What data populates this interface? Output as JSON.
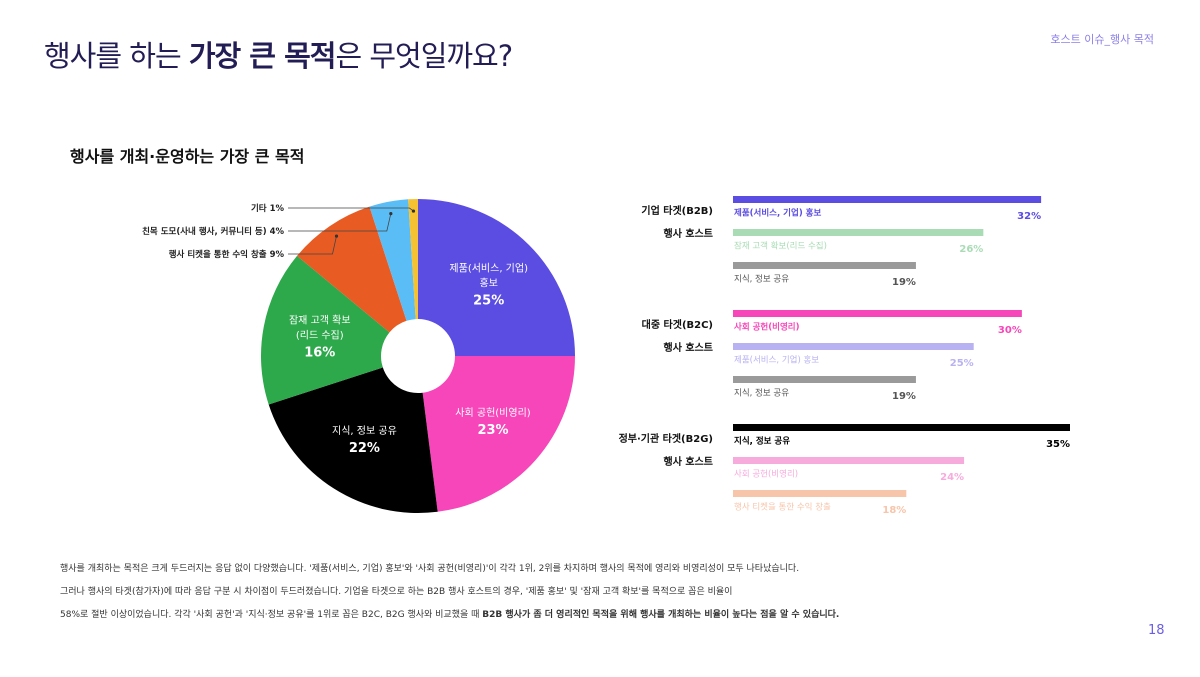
{
  "header": {
    "title_parts": [
      "행사를 하는 ",
      "가장 큰 목적",
      "은 무엇일까요?"
    ],
    "section": "호스트 이슈_행사 목적"
  },
  "chart_data": [
    {
      "type": "pie",
      "title": "행사를 개최·운영하는 가장 큰 목적",
      "categories": [
        "제품(서비스, 기업)\n홍보",
        "사회 공헌(비영리)",
        "지식, 정보 공유",
        "잠재 고객 확보\n(리드 수집)",
        "행사 티켓을 통한 수익 창출",
        "친목 도모(사내 행사, 커뮤니티 등)",
        "기타"
      ],
      "values": [
        25,
        23,
        22,
        16,
        9,
        4,
        1
      ],
      "value_labels": [
        "25%",
        "23%",
        "22%",
        "16%",
        "9%",
        "4%",
        "1%"
      ],
      "colors": [
        "#5b4ce2",
        "#f646b9",
        "#000000",
        "#2da84b",
        "#e85c24",
        "#5bbdf6",
        "#f5c234"
      ]
    },
    {
      "type": "bar",
      "title": "기업 타겟(B2B)",
      "subtitle": "행사 호스트",
      "categories": [
        "제품(서비스, 기업) 홍보",
        "잠재 고객 확보(리드 수집)",
        "지식, 정보 공유"
      ],
      "values": [
        32,
        26,
        19
      ],
      "value_labels": [
        "32%",
        "26%",
        "19%"
      ],
      "colors": [
        "#5b4ce2",
        "#a9dcb5",
        "#9a9a9a"
      ]
    },
    {
      "type": "bar",
      "title": "대중 타겟(B2C)",
      "subtitle": "행사 호스트",
      "categories": [
        "사회 공헌(비영리)",
        "제품(서비스, 기업) 홍보",
        "지식, 정보 공유"
      ],
      "values": [
        30,
        25,
        19
      ],
      "value_labels": [
        "30%",
        "25%",
        "19%"
      ],
      "colors": [
        "#f646b9",
        "#b9b2f2",
        "#9a9a9a"
      ]
    },
    {
      "type": "bar",
      "title": "정부·기관 타겟(B2G)",
      "subtitle": "행사 호스트",
      "categories": [
        "지식, 정보 공유",
        "사회 공헌(비영리)",
        "행사 티켓을 통한 수익 창출"
      ],
      "values": [
        35,
        24,
        18
      ],
      "value_labels": [
        "35%",
        "24%",
        "18%"
      ],
      "colors": [
        "#000000",
        "#f7abdd",
        "#f7c5aa"
      ]
    }
  ],
  "body": {
    "lines": [
      "행사를 개최하는 목적은 크게 두드러지는 응답 없이 다양했습니다. '제품(서비스, 기업) 홍보'와 '사회 공헌(비영리)'이 각각 1위, 2위를 차지하며 행사의 목적에 영리와 비영리성이 모두 나타났습니다.",
      "그러나 행사의 타겟(참가자)에 따라 응답 구분 시 차이점이 두드러졌습니다. 기업을 타겟으로 하는 B2B 행사 호스트의 경우, '제품 홍보' 및 '잠재 고객 확보'를 목적으로 꼽은 비율이",
      "58%로 절반 이상이었습니다. 각각 '사회 공헌'과 '지식·정보 공유'를 1위로 꼽은 B2C, B2G 행사와 비교했을 때 "
    ],
    "emphasis": "B2B 행사가 좀 더 영리적인 목적을 위해 행사를 개최하는 비율이 높다는 점을 알 수 있습니다."
  },
  "page_number": "18"
}
